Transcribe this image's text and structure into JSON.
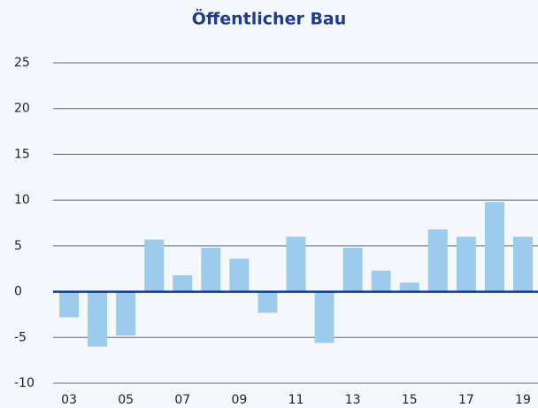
{
  "chart_data": {
    "type": "bar",
    "title": "Öffentlicher Bau",
    "categories": [
      "03",
      null,
      "05",
      null,
      "07",
      null,
      "09",
      null,
      "11",
      null,
      "13",
      null,
      "15",
      null,
      "17",
      null,
      "19"
    ],
    "values": [
      -2.8,
      -6.0,
      -4.8,
      5.7,
      1.8,
      4.8,
      3.6,
      -2.3,
      6.0,
      -5.6,
      4.8,
      2.3,
      1.0,
      6.8,
      6.0,
      9.8,
      6.0
    ],
    "color": "#9dcbee",
    "ylim": [
      -10,
      25
    ],
    "yticks": [
      -10,
      -5,
      0,
      5,
      10,
      15,
      20,
      25
    ],
    "grid": true
  }
}
